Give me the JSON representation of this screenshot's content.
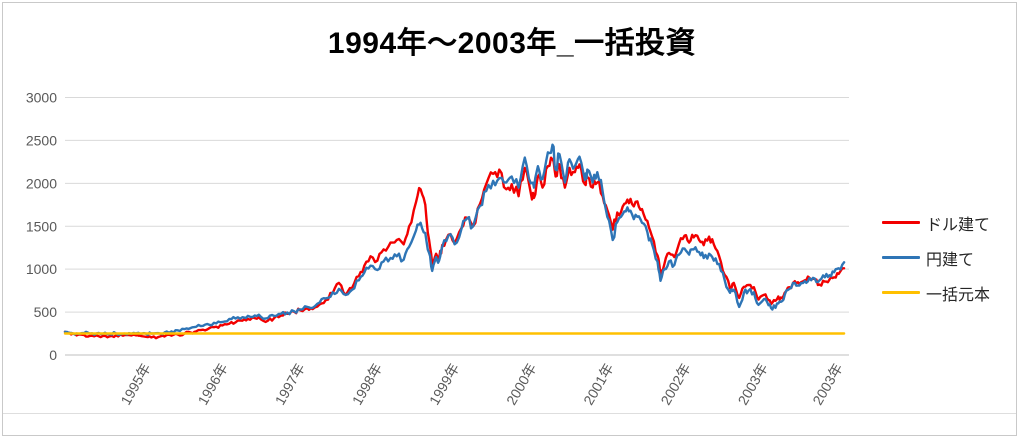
{
  "title": "1994年～2003年_一括投資",
  "legend": {
    "items": [
      {
        "label": "ドル建て",
        "color": "#f20000"
      },
      {
        "label": "円建て",
        "color": "#2e75b6"
      },
      {
        "label": "一括元本",
        "color": "#ffc000"
      }
    ]
  },
  "frame_color": "#c9c9c9",
  "chart_data": {
    "type": "line",
    "title": "1994年～2003年_一括投資",
    "xlabel": "",
    "ylabel": "",
    "ylim": [
      0,
      3000
    ],
    "y_ticks": [
      0,
      500,
      1000,
      1500,
      2000,
      2500,
      3000
    ],
    "xlim": [
      1994.0,
      2004.15
    ],
    "grid": "horizontal",
    "legend_position": "right",
    "grid_color": "#d9d9d9",
    "axis_color": "#bfbfbf",
    "tick_label_color": "#595959",
    "x_ticks": [
      {
        "t": 1995.0,
        "label": "1995年"
      },
      {
        "t": 1996.0,
        "label": "1996年"
      },
      {
        "t": 1997.0,
        "label": "1997年"
      },
      {
        "t": 1998.0,
        "label": "1998年"
      },
      {
        "t": 1999.0,
        "label": "1999年"
      },
      {
        "t": 2000.0,
        "label": "2000年"
      },
      {
        "t": 2001.0,
        "label": "2001年"
      },
      {
        "t": 2002.0,
        "label": "2002年"
      },
      {
        "t": 2003.0,
        "label": "2003年"
      },
      {
        "t": 2003.97,
        "label": "2003年"
      }
    ],
    "x": [
      1994.0,
      1994.08,
      1994.15,
      1994.25,
      1994.32,
      1994.41,
      1994.49,
      1994.58,
      1994.66,
      1994.75,
      1994.83,
      1994.92,
      1994.97,
      1995.05,
      1995.12,
      1995.21,
      1995.29,
      1995.38,
      1995.46,
      1995.55,
      1995.63,
      1995.7,
      1995.79,
      1995.87,
      1995.96,
      1996.04,
      1996.13,
      1996.21,
      1996.3,
      1996.37,
      1996.46,
      1996.54,
      1996.63,
      1996.71,
      1996.8,
      1996.88,
      1996.97,
      1997.05,
      1997.14,
      1997.21,
      1997.3,
      1997.38,
      1997.47,
      1997.55,
      1997.64,
      1997.72,
      1997.81,
      1997.88,
      1997.96,
      1998.05,
      1998.13,
      1998.22,
      1998.3,
      1998.39,
      1998.46,
      1998.55,
      1998.61,
      1998.67,
      1998.72,
      1998.76,
      1998.81,
      1998.85,
      1998.89,
      1998.97,
      1999.05,
      1999.14,
      1999.21,
      1999.29,
      1999.38,
      1999.46,
      1999.55,
      1999.63,
      1999.72,
      1999.79,
      1999.88,
      1999.96,
      2000.04,
      2000.08,
      2000.13,
      2000.19,
      2000.26,
      2000.32,
      2000.36,
      2000.41,
      2000.48,
      2000.54,
      2000.61,
      2000.67,
      2000.74,
      2000.77,
      2000.84,
      2000.9,
      2000.97,
      2001.03,
      2001.1,
      2001.16,
      2001.23,
      2001.29,
      2001.35,
      2001.42,
      2001.48,
      2001.55,
      2001.61,
      2001.68,
      2001.72,
      2001.77,
      2001.83,
      2001.9,
      2001.96,
      2002.03,
      2002.09,
      2002.15,
      2002.22,
      2002.28,
      2002.35,
      2002.41,
      2002.48,
      2002.55,
      2002.62,
      2002.67,
      2002.74,
      2002.8,
      2002.86,
      2002.93,
      2002.99,
      2003.06,
      2003.12,
      2003.17,
      2003.23,
      2003.28,
      2003.33,
      2003.39,
      2003.46,
      2003.52,
      2003.59,
      2003.65,
      2003.72,
      2003.78,
      2003.85,
      2003.91,
      2003.97,
      2004.03,
      2004.1
    ],
    "series": [
      {
        "name": "ドル建て",
        "color": "#f20000",
        "jitter": true,
        "values": [
          270,
          240,
          228,
          232,
          222,
          228,
          222,
          218,
          230,
          225,
          232,
          228,
          225,
          212,
          205,
          210,
          215,
          225,
          240,
          252,
          262,
          275,
          295,
          312,
          330,
          345,
          365,
          380,
          400,
          420,
          430,
          415,
          400,
          430,
          460,
          480,
          505,
          520,
          545,
          535,
          590,
          640,
          720,
          840,
          700,
          780,
          920,
          1040,
          1150,
          1100,
          1230,
          1310,
          1340,
          1290,
          1500,
          1780,
          1930,
          1750,
          1340,
          1060,
          1180,
          1120,
          1280,
          1400,
          1300,
          1480,
          1600,
          1500,
          1760,
          1990,
          2110,
          2160,
          1930,
          1990,
          1850,
          2180,
          1880,
          1830,
          2080,
          1950,
          2200,
          2280,
          2080,
          2220,
          1950,
          2180,
          2130,
          2220,
          1990,
          2070,
          1950,
          2010,
          1850,
          1690,
          1460,
          1660,
          1730,
          1810,
          1760,
          1790,
          1700,
          1560,
          1380,
          1160,
          935,
          1060,
          1190,
          1140,
          1300,
          1390,
          1310,
          1370,
          1340,
          1280,
          1380,
          1290,
          1150,
          935,
          780,
          840,
          665,
          795,
          815,
          790,
          645,
          700,
          640,
          610,
          650,
          670,
          725,
          790,
          860,
          830,
          870,
          900,
          885,
          820,
          855,
          880,
          905,
          945,
          1010
        ]
      },
      {
        "name": "円建て",
        "color": "#2e75b6",
        "jitter": true,
        "values": [
          270,
          258,
          252,
          256,
          248,
          252,
          246,
          243,
          252,
          248,
          255,
          250,
          248,
          248,
          250,
          255,
          262,
          275,
          288,
          302,
          315,
          328,
          340,
          352,
          368,
          385,
          420,
          425,
          440,
          455,
          460,
          445,
          430,
          455,
          480,
          495,
          510,
          530,
          560,
          550,
          610,
          660,
          730,
          770,
          700,
          760,
          870,
          960,
          1040,
          990,
          1090,
          1130,
          1150,
          1110,
          1260,
          1450,
          1540,
          1420,
          1190,
          980,
          1140,
          1100,
          1260,
          1390,
          1290,
          1470,
          1590,
          1500,
          1740,
          1910,
          2030,
          2060,
          2010,
          2080,
          1950,
          2300,
          2000,
          1950,
          2200,
          2050,
          2360,
          2450,
          2160,
          2340,
          2010,
          2280,
          2200,
          2310,
          2040,
          2160,
          2010,
          2130,
          1900,
          1610,
          1340,
          1550,
          1640,
          1720,
          1640,
          1610,
          1540,
          1430,
          1290,
          1090,
          865,
          1000,
          1090,
          1050,
          1170,
          1240,
          1170,
          1230,
          1200,
          1130,
          1180,
          1100,
          1060,
          875,
          725,
          760,
          560,
          725,
          750,
          730,
          585,
          650,
          580,
          530,
          600,
          620,
          700,
          770,
          840,
          810,
          860,
          895,
          890,
          870,
          905,
          930,
          965,
          1010,
          1080
        ]
      },
      {
        "name": "一括元本",
        "color": "#ffc000",
        "jitter": false,
        "x_own": [
          1994.0,
          2004.1
        ],
        "values_own": [
          250,
          250
        ]
      }
    ]
  }
}
